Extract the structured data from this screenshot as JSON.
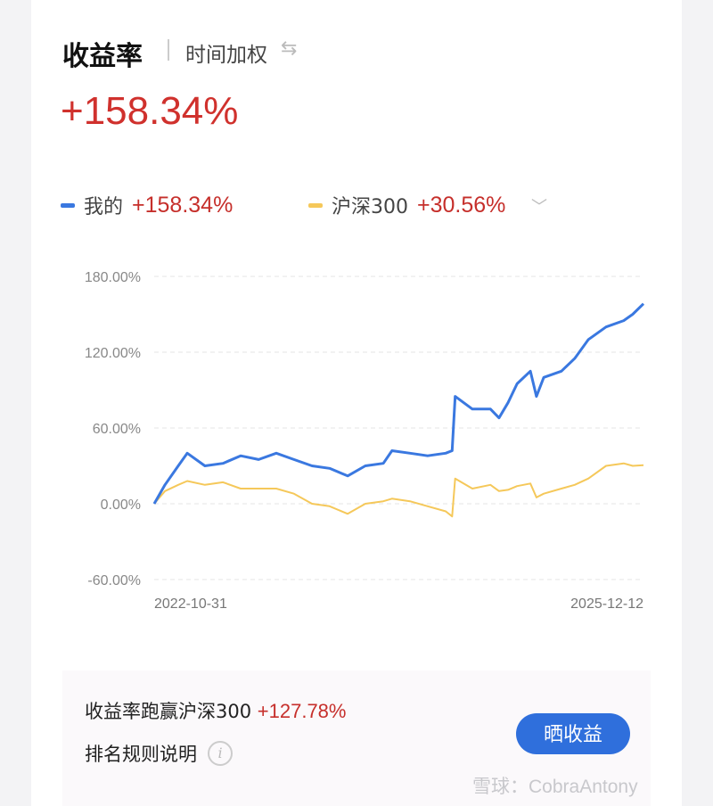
{
  "header": {
    "title": "收益率",
    "subtitle": "时间加权",
    "swap_icon": "swap-arrows-icon",
    "total_return": "+158.34%"
  },
  "legend": [
    {
      "label": "我的",
      "value": "+158.34%",
      "color": "#3a78e0"
    },
    {
      "label": "沪深300",
      "value": "+30.56%",
      "color": "#f5c85a"
    }
  ],
  "chart_data": {
    "type": "line",
    "y_ticks": [
      "180.00%",
      "120.00%",
      "60.00%",
      "0.00%",
      "-60.00%"
    ],
    "ylim": [
      -60,
      180
    ],
    "x_labels": [
      "2022-10-31",
      "2025-12-12"
    ],
    "xlim": [
      "2022-10-31",
      "2025-12-12"
    ],
    "grid": "horizontal dashed",
    "x": [
      "2022-10-31",
      "2022-11-25",
      "2022-12-26",
      "2023-01-16",
      "2023-02-26",
      "2023-04-09",
      "2023-05-20",
      "2023-07-01",
      "2023-08-11",
      "2023-09-21",
      "2023-11-02",
      "2023-12-13",
      "2024-01-24",
      "2024-03-05",
      "2024-04-16",
      "2024-05-06",
      "2024-06-17",
      "2024-07-28",
      "2024-09-08",
      "2024-09-23",
      "2024-09-30",
      "2024-11-09",
      "2024-12-21",
      "2025-01-10",
      "2025-01-31",
      "2025-02-21",
      "2025-03-24",
      "2025-04-07",
      "2025-04-24",
      "2025-06-04",
      "2025-07-05",
      "2025-08-06",
      "2025-09-16",
      "2025-10-27",
      "2025-11-17",
      "2025-12-12"
    ],
    "series": [
      {
        "name": "我的",
        "color": "#3a78e0",
        "values": [
          0,
          15,
          30,
          40,
          30,
          32,
          38,
          35,
          40,
          35,
          30,
          28,
          22,
          30,
          32,
          42,
          40,
          38,
          40,
          42,
          85,
          75,
          75,
          68,
          80,
          95,
          105,
          85,
          100,
          105,
          115,
          130,
          140,
          145,
          150,
          158.34
        ]
      },
      {
        "name": "沪深300",
        "color": "#f5c85a",
        "values": [
          0,
          10,
          15,
          18,
          15,
          17,
          12,
          12,
          12,
          8,
          0,
          -2,
          -8,
          0,
          2,
          4,
          2,
          -2,
          -6,
          -10,
          20,
          12,
          15,
          10,
          11,
          14,
          16,
          5,
          8,
          12,
          15,
          20,
          30,
          32,
          30,
          30.56
        ]
      }
    ]
  },
  "footer": {
    "beat_label": "收益率跑赢沪深300",
    "beat_value": "+127.78%",
    "rules_label": "排名规则说明",
    "info_icon": "info-icon",
    "share_button": "晒收益",
    "watermark": "雪球：CobraAntony"
  },
  "colors": {
    "red": "#c62f2b",
    "accent": "#2f6fdc"
  }
}
